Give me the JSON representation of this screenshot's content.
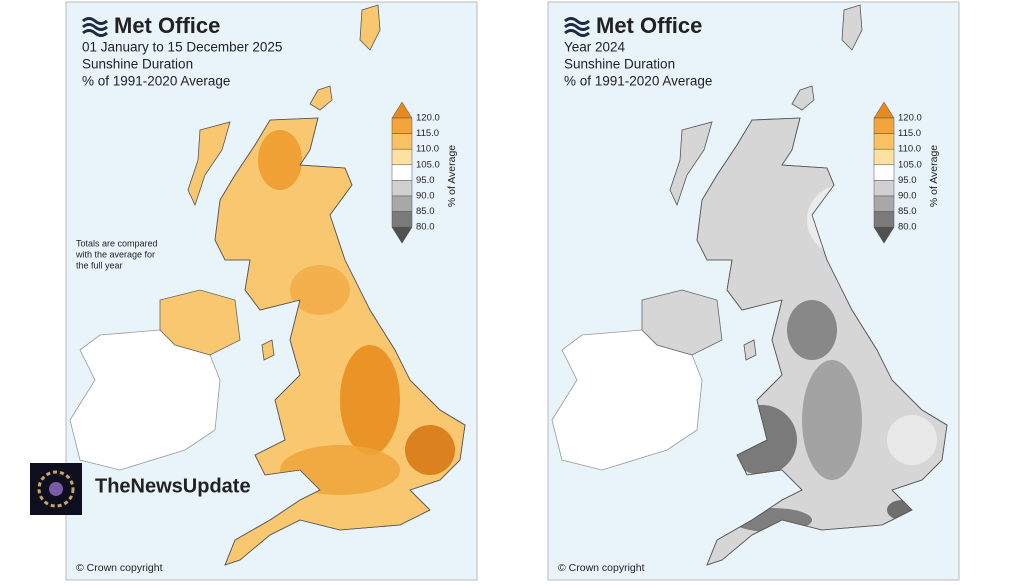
{
  "panels": [
    {
      "logo": "Met Office",
      "title_lines": [
        "01 January to 15 December 2025",
        "Sunshine Duration",
        "% of 1991-2020 Average"
      ],
      "legend": {
        "ticks": [
          "120.0",
          "115.0",
          "110.0",
          "105.0",
          "95.0",
          "90.0",
          "85.0",
          "80.0"
        ],
        "label": "% of Average"
      },
      "note": [
        "Totals are compared",
        "with the average for",
        "the full year"
      ],
      "copyright": "© Crown copyright"
    },
    {
      "logo": "Met Office",
      "title_lines": [
        "Year 2024",
        "Sunshine Duration",
        "% of 1991-2020 Average"
      ],
      "legend": {
        "ticks": [
          "120.0",
          "115.0",
          "110.0",
          "105.0",
          "95.0",
          "90.0",
          "85.0",
          "80.0"
        ],
        "label": "% of Average"
      },
      "copyright": "© Crown copyright"
    }
  ],
  "watermark": "TheNewsUpdate"
}
